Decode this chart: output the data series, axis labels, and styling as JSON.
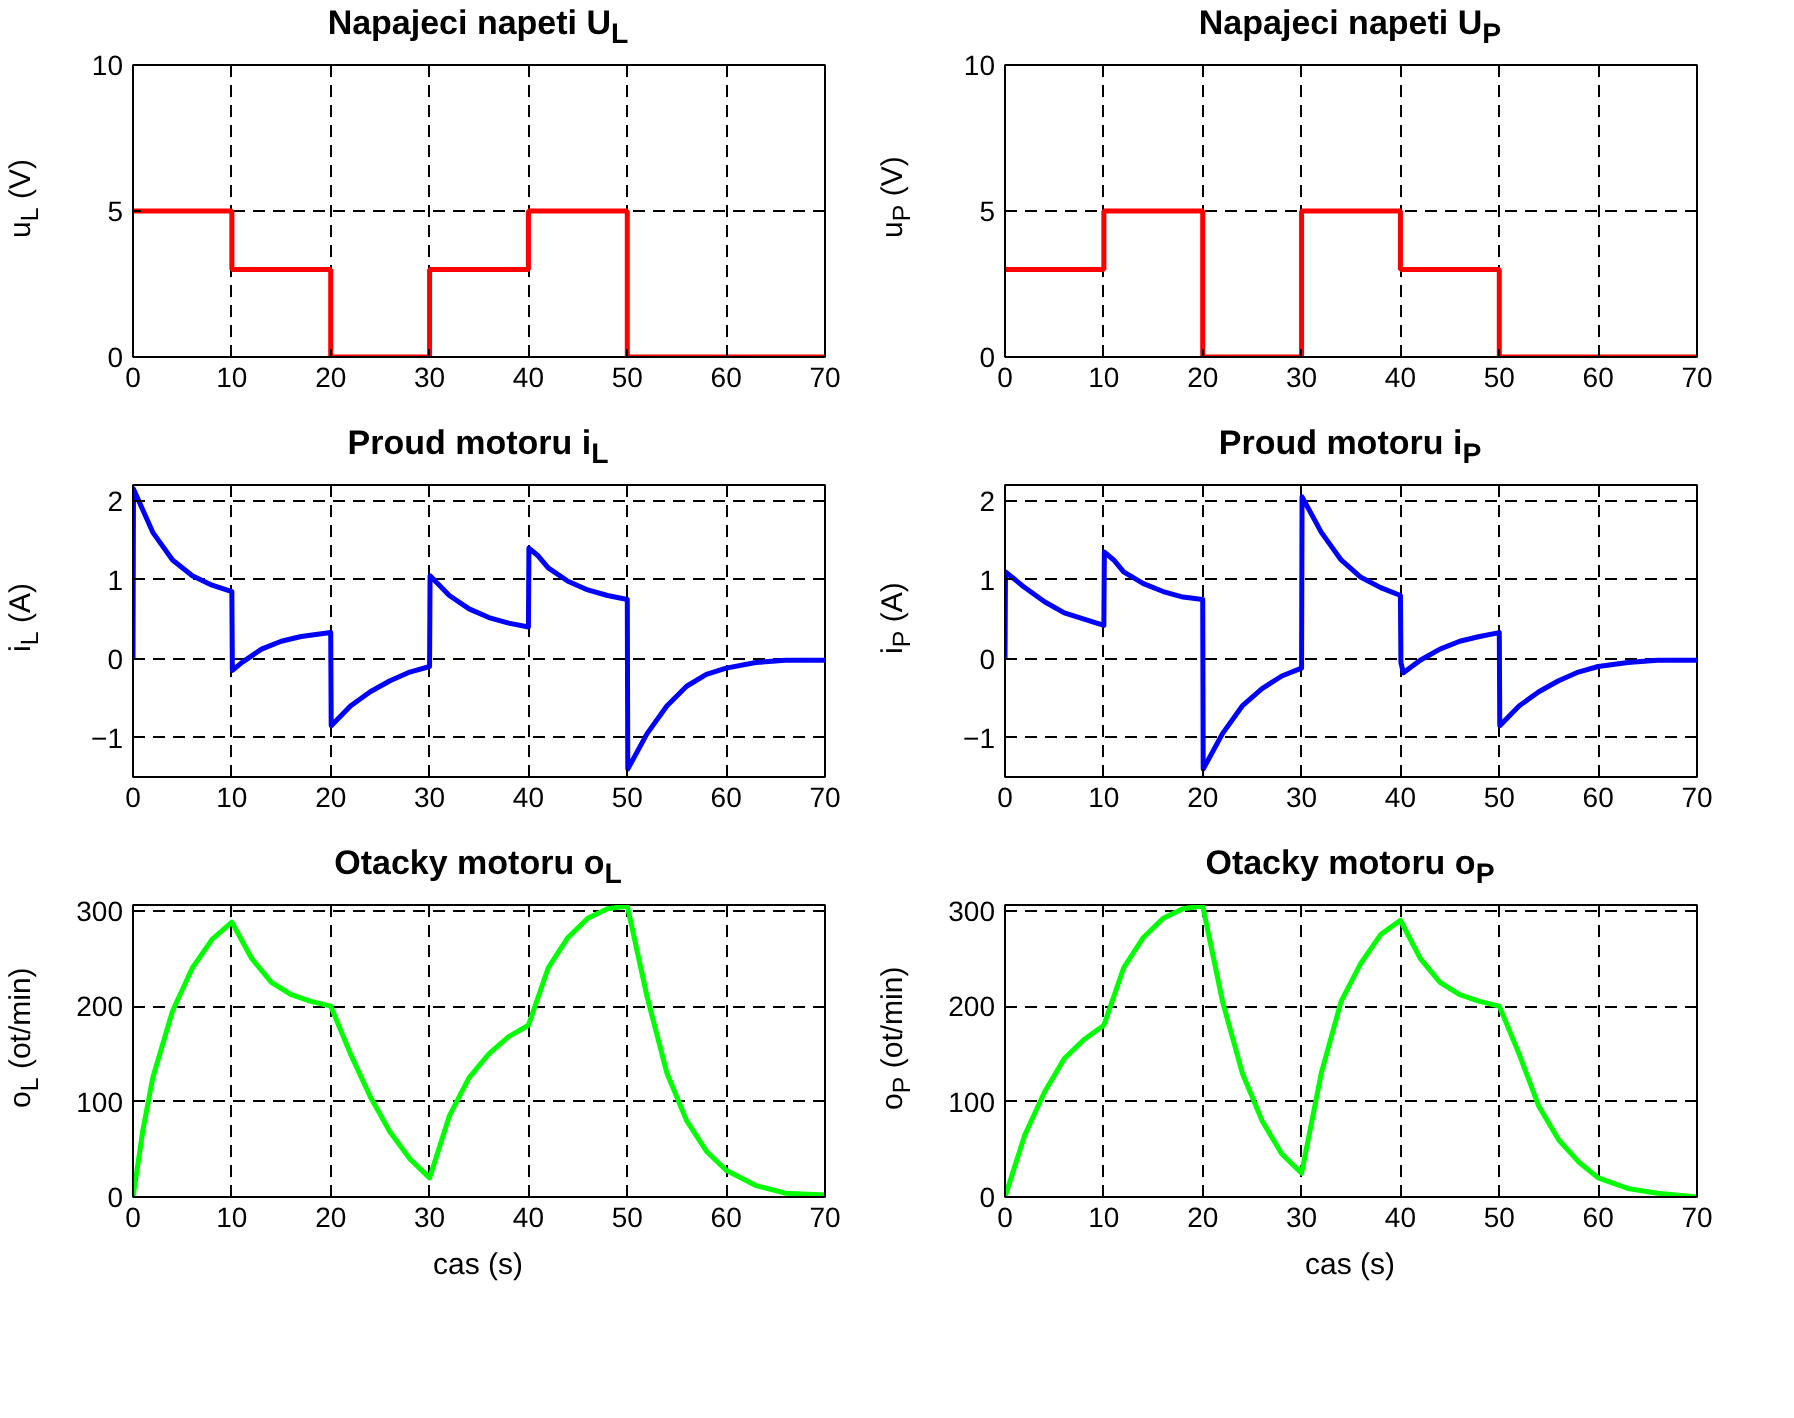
{
  "chart_data": [
    {
      "type": "step",
      "title": "Napajeci napeti U$_{L}$",
      "ylabel": "u$_{L}$ (V)",
      "color": "#ff0000",
      "grid": true,
      "xlim": [
        0,
        70
      ],
      "ylim": [
        0,
        10
      ],
      "xticks": [
        0,
        10,
        20,
        30,
        40,
        50,
        60,
        70
      ],
      "yticks": [
        0,
        5,
        10
      ],
      "x": [
        0,
        10,
        20,
        30,
        40,
        50,
        70
      ],
      "values": [
        5,
        3,
        0,
        3,
        5,
        0,
        0
      ]
    },
    {
      "type": "step",
      "title": "Napajeci napeti U$_{P}$",
      "ylabel": "u$_{P}$ (V)",
      "color": "#ff0000",
      "grid": true,
      "xlim": [
        0,
        70
      ],
      "ylim": [
        0,
        10
      ],
      "xticks": [
        0,
        10,
        20,
        30,
        40,
        50,
        60,
        70
      ],
      "yticks": [
        0,
        5,
        10
      ],
      "x": [
        0,
        10,
        20,
        30,
        40,
        50,
        70
      ],
      "values": [
        3,
        5,
        0,
        5,
        3,
        0,
        0
      ]
    },
    {
      "type": "line",
      "title": "Proud motoru i$_{L}$",
      "ylabel": "i$_{L}$ (A)",
      "color": "#0000ff",
      "grid": true,
      "xlim": [
        0,
        70
      ],
      "ylim": [
        -1.5,
        2.2
      ],
      "xticks": [
        0,
        10,
        20,
        30,
        40,
        50,
        60,
        70
      ],
      "yticks": [
        -1,
        0,
        1,
        2
      ],
      "x": [
        0,
        0.05,
        2,
        4,
        6,
        8,
        10,
        10.05,
        11,
        13,
        15,
        17,
        20,
        20.05,
        22,
        24,
        26,
        28,
        30,
        30.05,
        32,
        34,
        36,
        38,
        40,
        40.05,
        41,
        42,
        44,
        46,
        48,
        50,
        50.05,
        52,
        54,
        56,
        58,
        60,
        63,
        66,
        70
      ],
      "values": [
        0,
        2.15,
        1.6,
        1.25,
        1.05,
        0.93,
        0.85,
        -0.15,
        -0.05,
        0.12,
        0.22,
        0.28,
        0.33,
        -0.85,
        -0.6,
        -0.42,
        -0.28,
        -0.17,
        -0.1,
        1.05,
        0.8,
        0.63,
        0.52,
        0.45,
        0.4,
        1.4,
        1.3,
        1.15,
        0.98,
        0.87,
        0.8,
        0.75,
        -1.4,
        -0.95,
        -0.6,
        -0.35,
        -0.2,
        -0.12,
        -0.05,
        -0.02,
        -0.02
      ]
    },
    {
      "type": "line",
      "title": "Proud motoru i$_{P}$",
      "ylabel": "i$_{P}$ (A)",
      "color": "#0000ff",
      "grid": true,
      "xlim": [
        0,
        70
      ],
      "ylim": [
        -1.5,
        2.2
      ],
      "xticks": [
        0,
        10,
        20,
        30,
        40,
        50,
        60,
        70
      ],
      "yticks": [
        -1,
        0,
        1,
        2
      ],
      "x": [
        0,
        0.05,
        2,
        4,
        6,
        8,
        10,
        10.05,
        11,
        12,
        14,
        16,
        18,
        20,
        20.05,
        22,
        24,
        26,
        28,
        30,
        30.05,
        32,
        34,
        36,
        38,
        40,
        40.05,
        40.3,
        42,
        44,
        46,
        48,
        50,
        50.05,
        52,
        54,
        56,
        58,
        60,
        63,
        66,
        70
      ],
      "values": [
        0,
        1.1,
        0.9,
        0.72,
        0.58,
        0.5,
        0.42,
        1.35,
        1.25,
        1.1,
        0.95,
        0.85,
        0.78,
        0.75,
        -1.4,
        -0.95,
        -0.6,
        -0.38,
        -0.22,
        -0.12,
        2.05,
        1.6,
        1.25,
        1.03,
        0.9,
        0.8,
        -0.05,
        -0.18,
        -0.02,
        0.12,
        0.22,
        0.28,
        0.33,
        -0.85,
        -0.6,
        -0.42,
        -0.28,
        -0.17,
        -0.1,
        -0.05,
        -0.02,
        -0.02
      ]
    },
    {
      "type": "line",
      "title": "Otacky motoru o$_{L}$",
      "ylabel": "o$_{L}$ (ot/min)",
      "xlabel": "cas (s)",
      "color": "#00ff00",
      "grid": true,
      "xlim": [
        0,
        70
      ],
      "ylim": [
        0,
        306
      ],
      "xticks": [
        0,
        10,
        20,
        30,
        40,
        50,
        60,
        70
      ],
      "yticks": [
        0,
        100,
        200,
        300
      ],
      "x": [
        0,
        1,
        2,
        4,
        6,
        8,
        10,
        12,
        14,
        16,
        18,
        20,
        22,
        24,
        26,
        28,
        30,
        32,
        34,
        36,
        38,
        40,
        42,
        44,
        46,
        48,
        50,
        52,
        54,
        56,
        58,
        60,
        63,
        66,
        70
      ],
      "values": [
        0,
        70,
        125,
        195,
        240,
        270,
        288,
        250,
        225,
        212,
        205,
        200,
        150,
        105,
        68,
        40,
        20,
        85,
        125,
        150,
        168,
        180,
        240,
        272,
        292,
        302,
        305,
        210,
        130,
        80,
        48,
        28,
        12,
        4,
        2
      ]
    },
    {
      "type": "line",
      "title": "Otacky motoru o$_{P}$",
      "ylabel": "o$_{P}$ (ot/min)",
      "xlabel": "cas (s)",
      "color": "#00ff00",
      "grid": true,
      "xlim": [
        0,
        70
      ],
      "ylim": [
        0,
        306
      ],
      "xticks": [
        0,
        10,
        20,
        30,
        40,
        50,
        60,
        70
      ],
      "yticks": [
        0,
        100,
        200,
        300
      ],
      "x": [
        0,
        2,
        4,
        6,
        8,
        10,
        12,
        14,
        16,
        18,
        20,
        22,
        24,
        26,
        28,
        30,
        32,
        34,
        36,
        38,
        40,
        42,
        44,
        46,
        48,
        50,
        52,
        54,
        56,
        58,
        60,
        63,
        66,
        70
      ],
      "values": [
        0,
        65,
        110,
        145,
        165,
        180,
        240,
        272,
        292,
        302,
        305,
        205,
        130,
        80,
        45,
        25,
        130,
        205,
        245,
        275,
        290,
        250,
        225,
        212,
        205,
        200,
        150,
        95,
        60,
        37,
        20,
        9,
        4,
        0
      ]
    }
  ]
}
